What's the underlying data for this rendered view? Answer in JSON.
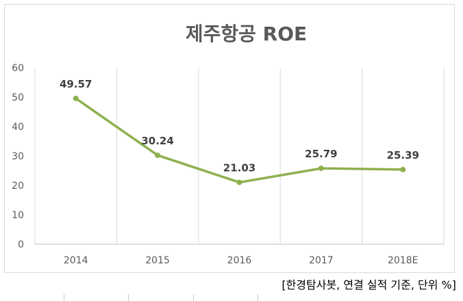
{
  "chart_data": {
    "type": "line",
    "title": "제주항공 ROE",
    "categories": [
      "2014",
      "2015",
      "2016",
      "2017",
      "2018E"
    ],
    "series": [
      {
        "values": [
          49.57,
          30.24,
          21.03,
          25.79,
          25.39
        ],
        "color": "#8db04e"
      }
    ],
    "data_labels": [
      "49.57",
      "30.24",
      "21.03",
      "25.79",
      "25.39"
    ],
    "ylim": [
      0,
      60
    ],
    "yticks": [
      0,
      10,
      20,
      30,
      40,
      50,
      60
    ],
    "xlabel": "",
    "ylabel": "",
    "grid": "vertical",
    "legend": "none"
  },
  "source_note": "[한경탐사봇, 연결 실적 기준, 단위 %]"
}
